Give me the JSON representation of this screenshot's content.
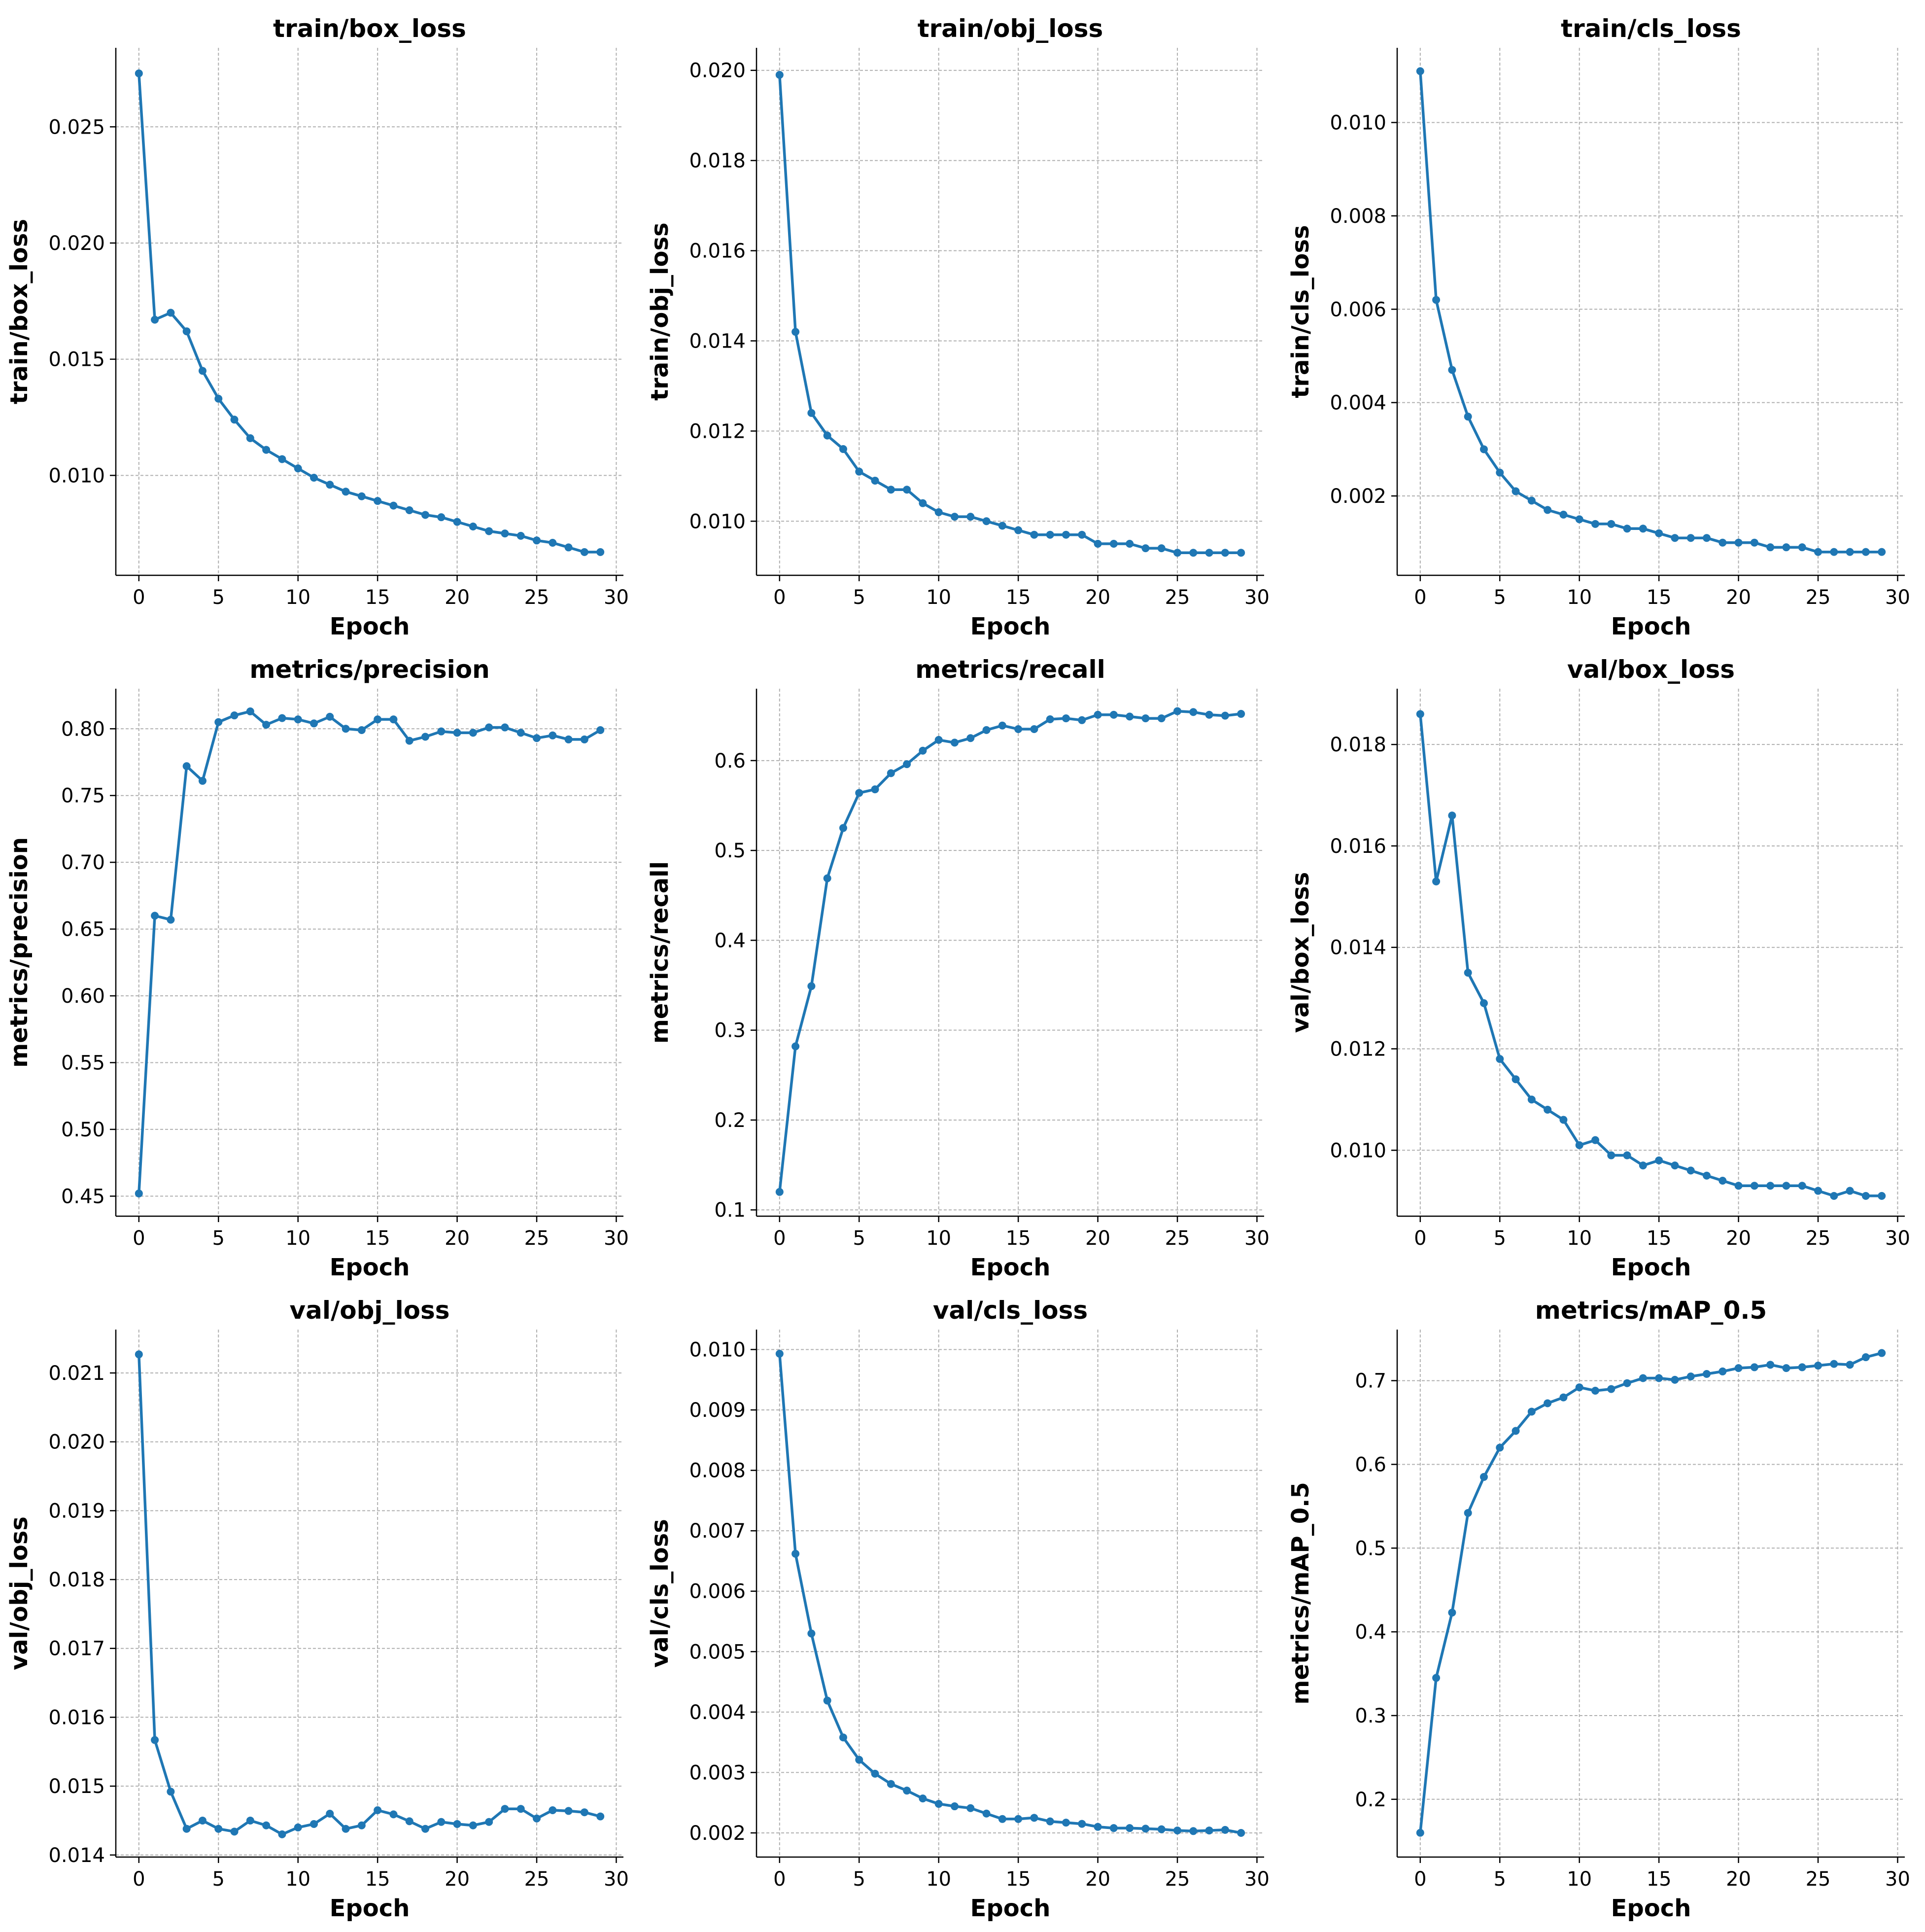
{
  "accent_color": "#1f77b4",
  "grid_color": "#b0b0b0",
  "chart_data": [
    {
      "type": "line",
      "title": "train/box_loss",
      "xlabel": "Epoch",
      "ylabel": "train/box_loss",
      "x": [
        0,
        1,
        2,
        3,
        4,
        5,
        6,
        7,
        8,
        9,
        10,
        11,
        12,
        13,
        14,
        15,
        16,
        17,
        18,
        19,
        20,
        21,
        22,
        23,
        24,
        25,
        26,
        27,
        28,
        29
      ],
      "values": [
        0.0273,
        0.0167,
        0.017,
        0.0162,
        0.0145,
        0.0133,
        0.0124,
        0.0116,
        0.0111,
        0.0107,
        0.0103,
        0.0099,
        0.0096,
        0.0093,
        0.0091,
        0.0089,
        0.0087,
        0.0085,
        0.0083,
        0.0082,
        0.008,
        0.0078,
        0.0076,
        0.0075,
        0.0074,
        0.0072,
        0.0071,
        0.0069,
        0.0067,
        0.0067
      ],
      "xlim": [
        -1.45,
        30.45
      ],
      "ylim": [
        0.0057,
        0.0284
      ],
      "xticks": [
        0,
        5,
        10,
        15,
        20,
        25,
        30
      ],
      "yticks": [
        0.01,
        0.015,
        0.02,
        0.025
      ],
      "ytick_labels": [
        "0.010",
        "0.015",
        "0.020",
        "0.025"
      ],
      "grid": true
    },
    {
      "type": "line",
      "title": "train/obj_loss",
      "xlabel": "Epoch",
      "ylabel": "train/obj_loss",
      "x": [
        0,
        1,
        2,
        3,
        4,
        5,
        6,
        7,
        8,
        9,
        10,
        11,
        12,
        13,
        14,
        15,
        16,
        17,
        18,
        19,
        20,
        21,
        22,
        23,
        24,
        25,
        26,
        27,
        28,
        29
      ],
      "values": [
        0.0199,
        0.0142,
        0.0124,
        0.0119,
        0.0116,
        0.0111,
        0.0109,
        0.0107,
        0.0107,
        0.0104,
        0.0102,
        0.0101,
        0.0101,
        0.01,
        0.0099,
        0.0098,
        0.0097,
        0.0097,
        0.0097,
        0.0097,
        0.0095,
        0.0095,
        0.0095,
        0.0094,
        0.0094,
        0.0093,
        0.0093,
        0.0093,
        0.0093,
        0.0093
      ],
      "xlim": [
        -1.45,
        30.45
      ],
      "ylim": [
        0.0088,
        0.0205
      ],
      "xticks": [
        0,
        5,
        10,
        15,
        20,
        25,
        30
      ],
      "yticks": [
        0.01,
        0.012,
        0.014,
        0.016,
        0.018,
        0.02
      ],
      "ytick_labels": [
        "0.010",
        "0.012",
        "0.014",
        "0.016",
        "0.018",
        "0.020"
      ],
      "grid": true
    },
    {
      "type": "line",
      "title": "train/cls_loss",
      "xlabel": "Epoch",
      "ylabel": "train/cls_loss",
      "x": [
        0,
        1,
        2,
        3,
        4,
        5,
        6,
        7,
        8,
        9,
        10,
        11,
        12,
        13,
        14,
        15,
        16,
        17,
        18,
        19,
        20,
        21,
        22,
        23,
        24,
        25,
        26,
        27,
        28,
        29
      ],
      "values": [
        0.0111,
        0.0062,
        0.0047,
        0.0037,
        0.003,
        0.0025,
        0.0021,
        0.0019,
        0.0017,
        0.0016,
        0.0015,
        0.0014,
        0.0014,
        0.0013,
        0.0013,
        0.0012,
        0.0011,
        0.0011,
        0.0011,
        0.001,
        0.001,
        0.001,
        0.0009,
        0.0009,
        0.0009,
        0.0008,
        0.0008,
        0.0008,
        0.0008,
        0.0008
      ],
      "xlim": [
        -1.45,
        30.45
      ],
      "ylim": [
        0.0003,
        0.0116
      ],
      "xticks": [
        0,
        5,
        10,
        15,
        20,
        25,
        30
      ],
      "yticks": [
        0.002,
        0.004,
        0.006,
        0.008,
        0.01
      ],
      "ytick_labels": [
        "0.002",
        "0.004",
        "0.006",
        "0.008",
        "0.010"
      ],
      "grid": true
    },
    {
      "type": "line",
      "title": "metrics/precision",
      "xlabel": "Epoch",
      "ylabel": "metrics/precision",
      "x": [
        0,
        1,
        2,
        3,
        4,
        5,
        6,
        7,
        8,
        9,
        10,
        11,
        12,
        13,
        14,
        15,
        16,
        17,
        18,
        19,
        20,
        21,
        22,
        23,
        24,
        25,
        26,
        27,
        28,
        29
      ],
      "values": [
        0.452,
        0.66,
        0.657,
        0.772,
        0.761,
        0.805,
        0.81,
        0.813,
        0.803,
        0.808,
        0.807,
        0.804,
        0.809,
        0.8,
        0.799,
        0.807,
        0.807,
        0.791,
        0.794,
        0.798,
        0.797,
        0.797,
        0.801,
        0.801,
        0.797,
        0.793,
        0.795,
        0.792,
        0.792,
        0.799
      ],
      "xlim": [
        -1.45,
        30.45
      ],
      "ylim": [
        0.435,
        0.83
      ],
      "xticks": [
        0,
        5,
        10,
        15,
        20,
        25,
        30
      ],
      "yticks": [
        0.45,
        0.5,
        0.55,
        0.6,
        0.65,
        0.7,
        0.75,
        0.8
      ],
      "ytick_labels": [
        "0.45",
        "0.50",
        "0.55",
        "0.60",
        "0.65",
        "0.70",
        "0.75",
        "0.80"
      ],
      "grid": true
    },
    {
      "type": "line",
      "title": "metrics/recall",
      "xlabel": "Epoch",
      "ylabel": "metrics/recall",
      "x": [
        0,
        1,
        2,
        3,
        4,
        5,
        6,
        7,
        8,
        9,
        10,
        11,
        12,
        13,
        14,
        15,
        16,
        17,
        18,
        19,
        20,
        21,
        22,
        23,
        24,
        25,
        26,
        27,
        28,
        29
      ],
      "values": [
        0.12,
        0.282,
        0.349,
        0.469,
        0.525,
        0.564,
        0.568,
        0.586,
        0.596,
        0.611,
        0.623,
        0.62,
        0.625,
        0.634,
        0.639,
        0.635,
        0.635,
        0.646,
        0.647,
        0.645,
        0.651,
        0.651,
        0.649,
        0.647,
        0.647,
        0.655,
        0.654,
        0.651,
        0.65,
        0.652
      ],
      "xlim": [
        -1.45,
        30.45
      ],
      "ylim": [
        0.093,
        0.68
      ],
      "xticks": [
        0,
        5,
        10,
        15,
        20,
        25,
        30
      ],
      "yticks": [
        0.1,
        0.2,
        0.3,
        0.4,
        0.5,
        0.6
      ],
      "ytick_labels": [
        "0.1",
        "0.2",
        "0.3",
        "0.4",
        "0.5",
        "0.6"
      ],
      "grid": true
    },
    {
      "type": "line",
      "title": "val/box_loss",
      "xlabel": "Epoch",
      "ylabel": "val/box_loss",
      "x": [
        0,
        1,
        2,
        3,
        4,
        5,
        6,
        7,
        8,
        9,
        10,
        11,
        12,
        13,
        14,
        15,
        16,
        17,
        18,
        19,
        20,
        21,
        22,
        23,
        24,
        25,
        26,
        27,
        28,
        29
      ],
      "values": [
        0.0186,
        0.0153,
        0.0166,
        0.0135,
        0.0129,
        0.0118,
        0.0114,
        0.011,
        0.0108,
        0.0106,
        0.0101,
        0.0102,
        0.0099,
        0.0099,
        0.0097,
        0.0098,
        0.0097,
        0.0096,
        0.0095,
        0.0094,
        0.0093,
        0.0093,
        0.0093,
        0.0093,
        0.0093,
        0.0092,
        0.0091,
        0.0092,
        0.0091,
        0.0091
      ],
      "xlim": [
        -1.45,
        30.45
      ],
      "ylim": [
        0.0087,
        0.0191
      ],
      "xticks": [
        0,
        5,
        10,
        15,
        20,
        25,
        30
      ],
      "yticks": [
        0.01,
        0.012,
        0.014,
        0.016,
        0.018
      ],
      "ytick_labels": [
        "0.010",
        "0.012",
        "0.014",
        "0.016",
        "0.018"
      ],
      "grid": true
    },
    {
      "type": "line",
      "title": "val/obj_loss",
      "xlabel": "Epoch",
      "ylabel": "val/obj_loss",
      "x": [
        0,
        1,
        2,
        3,
        4,
        5,
        6,
        7,
        8,
        9,
        10,
        11,
        12,
        13,
        14,
        15,
        16,
        17,
        18,
        19,
        20,
        21,
        22,
        23,
        24,
        25,
        26,
        27,
        28,
        29
      ],
      "values": [
        0.02127,
        0.01567,
        0.01492,
        0.01438,
        0.0145,
        0.01438,
        0.01434,
        0.0145,
        0.01443,
        0.0143,
        0.0144,
        0.01445,
        0.0146,
        0.01438,
        0.01443,
        0.01465,
        0.01459,
        0.01449,
        0.01438,
        0.01448,
        0.01445,
        0.01443,
        0.01448,
        0.01467,
        0.01467,
        0.01453,
        0.01465,
        0.01464,
        0.01462,
        0.01456
      ],
      "xlim": [
        -1.45,
        30.45
      ],
      "ylim": [
        0.01397,
        0.02163
      ],
      "xticks": [
        0,
        5,
        10,
        15,
        20,
        25,
        30
      ],
      "yticks": [
        0.014,
        0.015,
        0.016,
        0.017,
        0.018,
        0.019,
        0.02,
        0.021
      ],
      "ytick_labels": [
        "0.014",
        "0.015",
        "0.016",
        "0.017",
        "0.018",
        "0.019",
        "0.020",
        "0.021"
      ],
      "grid": true
    },
    {
      "type": "line",
      "title": "val/cls_loss",
      "xlabel": "Epoch",
      "ylabel": "val/cls_loss",
      "x": [
        0,
        1,
        2,
        3,
        4,
        5,
        6,
        7,
        8,
        9,
        10,
        11,
        12,
        13,
        14,
        15,
        16,
        17,
        18,
        19,
        20,
        21,
        22,
        23,
        24,
        25,
        26,
        27,
        28,
        29
      ],
      "values": [
        0.00993,
        0.00662,
        0.0053,
        0.00419,
        0.00358,
        0.00321,
        0.00298,
        0.00281,
        0.0027,
        0.00257,
        0.00248,
        0.00244,
        0.00241,
        0.00232,
        0.00223,
        0.00223,
        0.00225,
        0.00219,
        0.00217,
        0.00215,
        0.0021,
        0.00208,
        0.00208,
        0.00207,
        0.00206,
        0.00204,
        0.00203,
        0.00204,
        0.00205,
        0.002
      ],
      "xlim": [
        -1.45,
        30.45
      ],
      "ylim": [
        0.0016,
        0.01033
      ],
      "xticks": [
        0,
        5,
        10,
        15,
        20,
        25,
        30
      ],
      "yticks": [
        0.002,
        0.003,
        0.004,
        0.005,
        0.006,
        0.007,
        0.008,
        0.009,
        0.01
      ],
      "ytick_labels": [
        "0.002",
        "0.003",
        "0.004",
        "0.005",
        "0.006",
        "0.007",
        "0.008",
        "0.009",
        "0.010"
      ],
      "grid": true
    },
    {
      "type": "line",
      "title": "metrics/mAP_0.5",
      "xlabel": "Epoch",
      "ylabel": "metrics/mAP_0.5",
      "x": [
        0,
        1,
        2,
        3,
        4,
        5,
        6,
        7,
        8,
        9,
        10,
        11,
        12,
        13,
        14,
        15,
        16,
        17,
        18,
        19,
        20,
        21,
        22,
        23,
        24,
        25,
        26,
        27,
        28,
        29
      ],
      "values": [
        0.16,
        0.345,
        0.423,
        0.542,
        0.585,
        0.62,
        0.64,
        0.663,
        0.673,
        0.68,
        0.692,
        0.688,
        0.69,
        0.697,
        0.703,
        0.703,
        0.701,
        0.705,
        0.708,
        0.711,
        0.715,
        0.716,
        0.719,
        0.715,
        0.716,
        0.718,
        0.72,
        0.719,
        0.728,
        0.733
      ],
      "xlim": [
        -1.45,
        30.45
      ],
      "ylim": [
        0.131,
        0.761
      ],
      "xticks": [
        0,
        5,
        10,
        15,
        20,
        25,
        30
      ],
      "yticks": [
        0.2,
        0.3,
        0.4,
        0.5,
        0.6,
        0.7
      ],
      "ytick_labels": [
        "0.2",
        "0.3",
        "0.4",
        "0.5",
        "0.6",
        "0.7"
      ],
      "grid": true
    }
  ]
}
